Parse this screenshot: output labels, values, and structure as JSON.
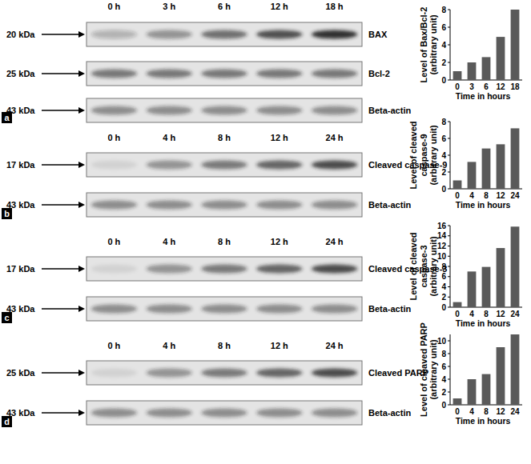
{
  "figure": {
    "panels": [
      {
        "letter": "a",
        "lanes": [
          "0 h",
          "3 h",
          "6 h",
          "12 h",
          "18 h"
        ],
        "rows": [
          {
            "mw": "20 kDa",
            "label": "BAX"
          },
          {
            "mw": "25 kDa",
            "label": "Bcl-2"
          },
          {
            "mw": "43 kDa",
            "label": "Beta-actin"
          }
        ]
      },
      {
        "letter": "b",
        "lanes": [
          "0 h",
          "4 h",
          "8 h",
          "12 h",
          "24 h"
        ],
        "rows": [
          {
            "mw": "17 kDa",
            "label": "Cleaved caspase-9"
          },
          {
            "mw": "43 kDa",
            "label": "Beta-actin"
          }
        ]
      },
      {
        "letter": "c",
        "lanes": [
          "0 h",
          "4 h",
          "8 h",
          "12 h",
          "24 h"
        ],
        "rows": [
          {
            "mw": "17 kDa",
            "label": "Cleaved caspase-3"
          },
          {
            "mw": "43 kDa",
            "label": "Beta-actin"
          }
        ]
      },
      {
        "letter": "d",
        "lanes": [
          "0 h",
          "4 h",
          "8 h",
          "12 h",
          "24 h"
        ],
        "rows": [
          {
            "mw": "25 kDa",
            "label": "Cleaved PARP"
          },
          {
            "mw": "43 kDa",
            "label": "Beta-actin"
          }
        ]
      }
    ]
  },
  "chart_data": [
    {
      "type": "bar",
      "categories": [
        "0",
        "3",
        "6",
        "12",
        "18"
      ],
      "values": [
        1,
        2,
        2.6,
        4.9,
        8
      ],
      "color": "#5a5a5a",
      "ylim": [
        0,
        8
      ],
      "yticks": [
        0,
        2,
        4,
        6,
        8
      ],
      "x_label": "Time in hours",
      "y_label": "Level of Bax/Bcl-2 (arbitrary unit)"
    },
    {
      "type": "bar",
      "categories": [
        "0",
        "4",
        "8",
        "12",
        "24"
      ],
      "values": [
        1,
        3.2,
        4.8,
        5.3,
        7.2
      ],
      "color": "#5a5a5a",
      "ylim": [
        0,
        8
      ],
      "yticks": [
        0,
        2,
        4,
        6,
        8
      ],
      "x_label": "Time in hours",
      "y_label": "Level of cleaved caspase-9 (arbitrary unit)"
    },
    {
      "type": "bar",
      "categories": [
        "0",
        "4",
        "8",
        "12",
        "24"
      ],
      "values": [
        1,
        7,
        7.9,
        11.6,
        15.8
      ],
      "color": "#5a5a5a",
      "ylim": [
        0,
        16
      ],
      "yticks": [
        0,
        2,
        4,
        6,
        8,
        10,
        12,
        14,
        16
      ],
      "x_label": "Time in hours",
      "y_label": "Level of cleaved caspase-3 (arbitrary unit)"
    },
    {
      "type": "bar",
      "categories": [
        "0",
        "4",
        "8",
        "12",
        "24"
      ],
      "values": [
        1,
        4,
        4.8,
        9,
        11
      ],
      "color": "#5a5a5a",
      "ylim": [
        0,
        11
      ],
      "yticks": [
        0,
        2,
        4,
        6,
        8,
        10
      ],
      "x_label": "Time in hours",
      "y_label": "Level of cleaved PARP (arbitrary unit)"
    }
  ]
}
